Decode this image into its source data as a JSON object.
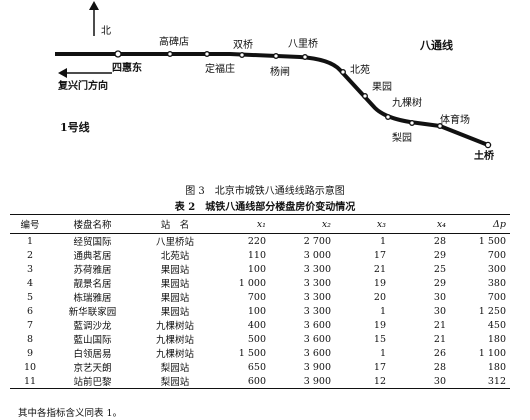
{
  "map": {
    "north_label": "北",
    "line_name": "八通线",
    "line1_label": "1号线",
    "direction_label": "复兴门方向",
    "stations": {
      "sihuidong": "四惠东",
      "gaobeidian": "高碑店",
      "shuangqiao": "双桥",
      "dingfuzhuang": "定福庄",
      "baliqiao": "八里桥",
      "yangzha": "杨闸",
      "beiyuan": "北苑",
      "guoyuan": "果园",
      "jiukeshu": "九棵树",
      "liyuan": "梨园",
      "tiyuchang": "体育场",
      "tuqiao": "土桥"
    }
  },
  "figure_caption": "图 3　北京市城铁八通线线路示意图",
  "table": {
    "label": "表 2",
    "title": "城铁八通线部分楼盘房价变动情况",
    "headers": [
      "编号",
      "楼盘名称",
      "站　名",
      "x₁",
      "x₂",
      "x₃",
      "x₄",
      "Δp"
    ],
    "rows": [
      [
        "1",
        "经贸国际",
        "八里桥站",
        "220",
        "2 700",
        "1",
        "28",
        "1 500"
      ],
      [
        "2",
        "通典茗居",
        "北苑站",
        "110",
        "3 000",
        "17",
        "29",
        "700"
      ],
      [
        "3",
        "苏荷雅居",
        "果园站",
        "100",
        "3 300",
        "21",
        "25",
        "300"
      ],
      [
        "4",
        "靓景名居",
        "果园站",
        "1 000",
        "3 300",
        "19",
        "29",
        "380"
      ],
      [
        "5",
        "栋瑞雅居",
        "果园站",
        "700",
        "3 300",
        "20",
        "30",
        "700"
      ],
      [
        "6",
        "新华联家园",
        "果园站",
        "100",
        "3 300",
        "1",
        "30",
        "1 250"
      ],
      [
        "7",
        "藍调沙龙",
        "九棵树站",
        "400",
        "3 600",
        "19",
        "21",
        "450"
      ],
      [
        "8",
        "藍山国际",
        "九棵树站",
        "500",
        "3 600",
        "15",
        "21",
        "180"
      ],
      [
        "9",
        "白领居易",
        "九棵树站",
        "1 500",
        "3 600",
        "1",
        "26",
        "1 100"
      ],
      [
        "10",
        "京艺天朗",
        "梨园站",
        "650",
        "3 900",
        "17",
        "28",
        "180"
      ],
      [
        "11",
        "站前巴黎",
        "梨园站",
        "600",
        "3 900",
        "12",
        "30",
        "312"
      ]
    ]
  },
  "note": "其中各指标含义同表 1。"
}
